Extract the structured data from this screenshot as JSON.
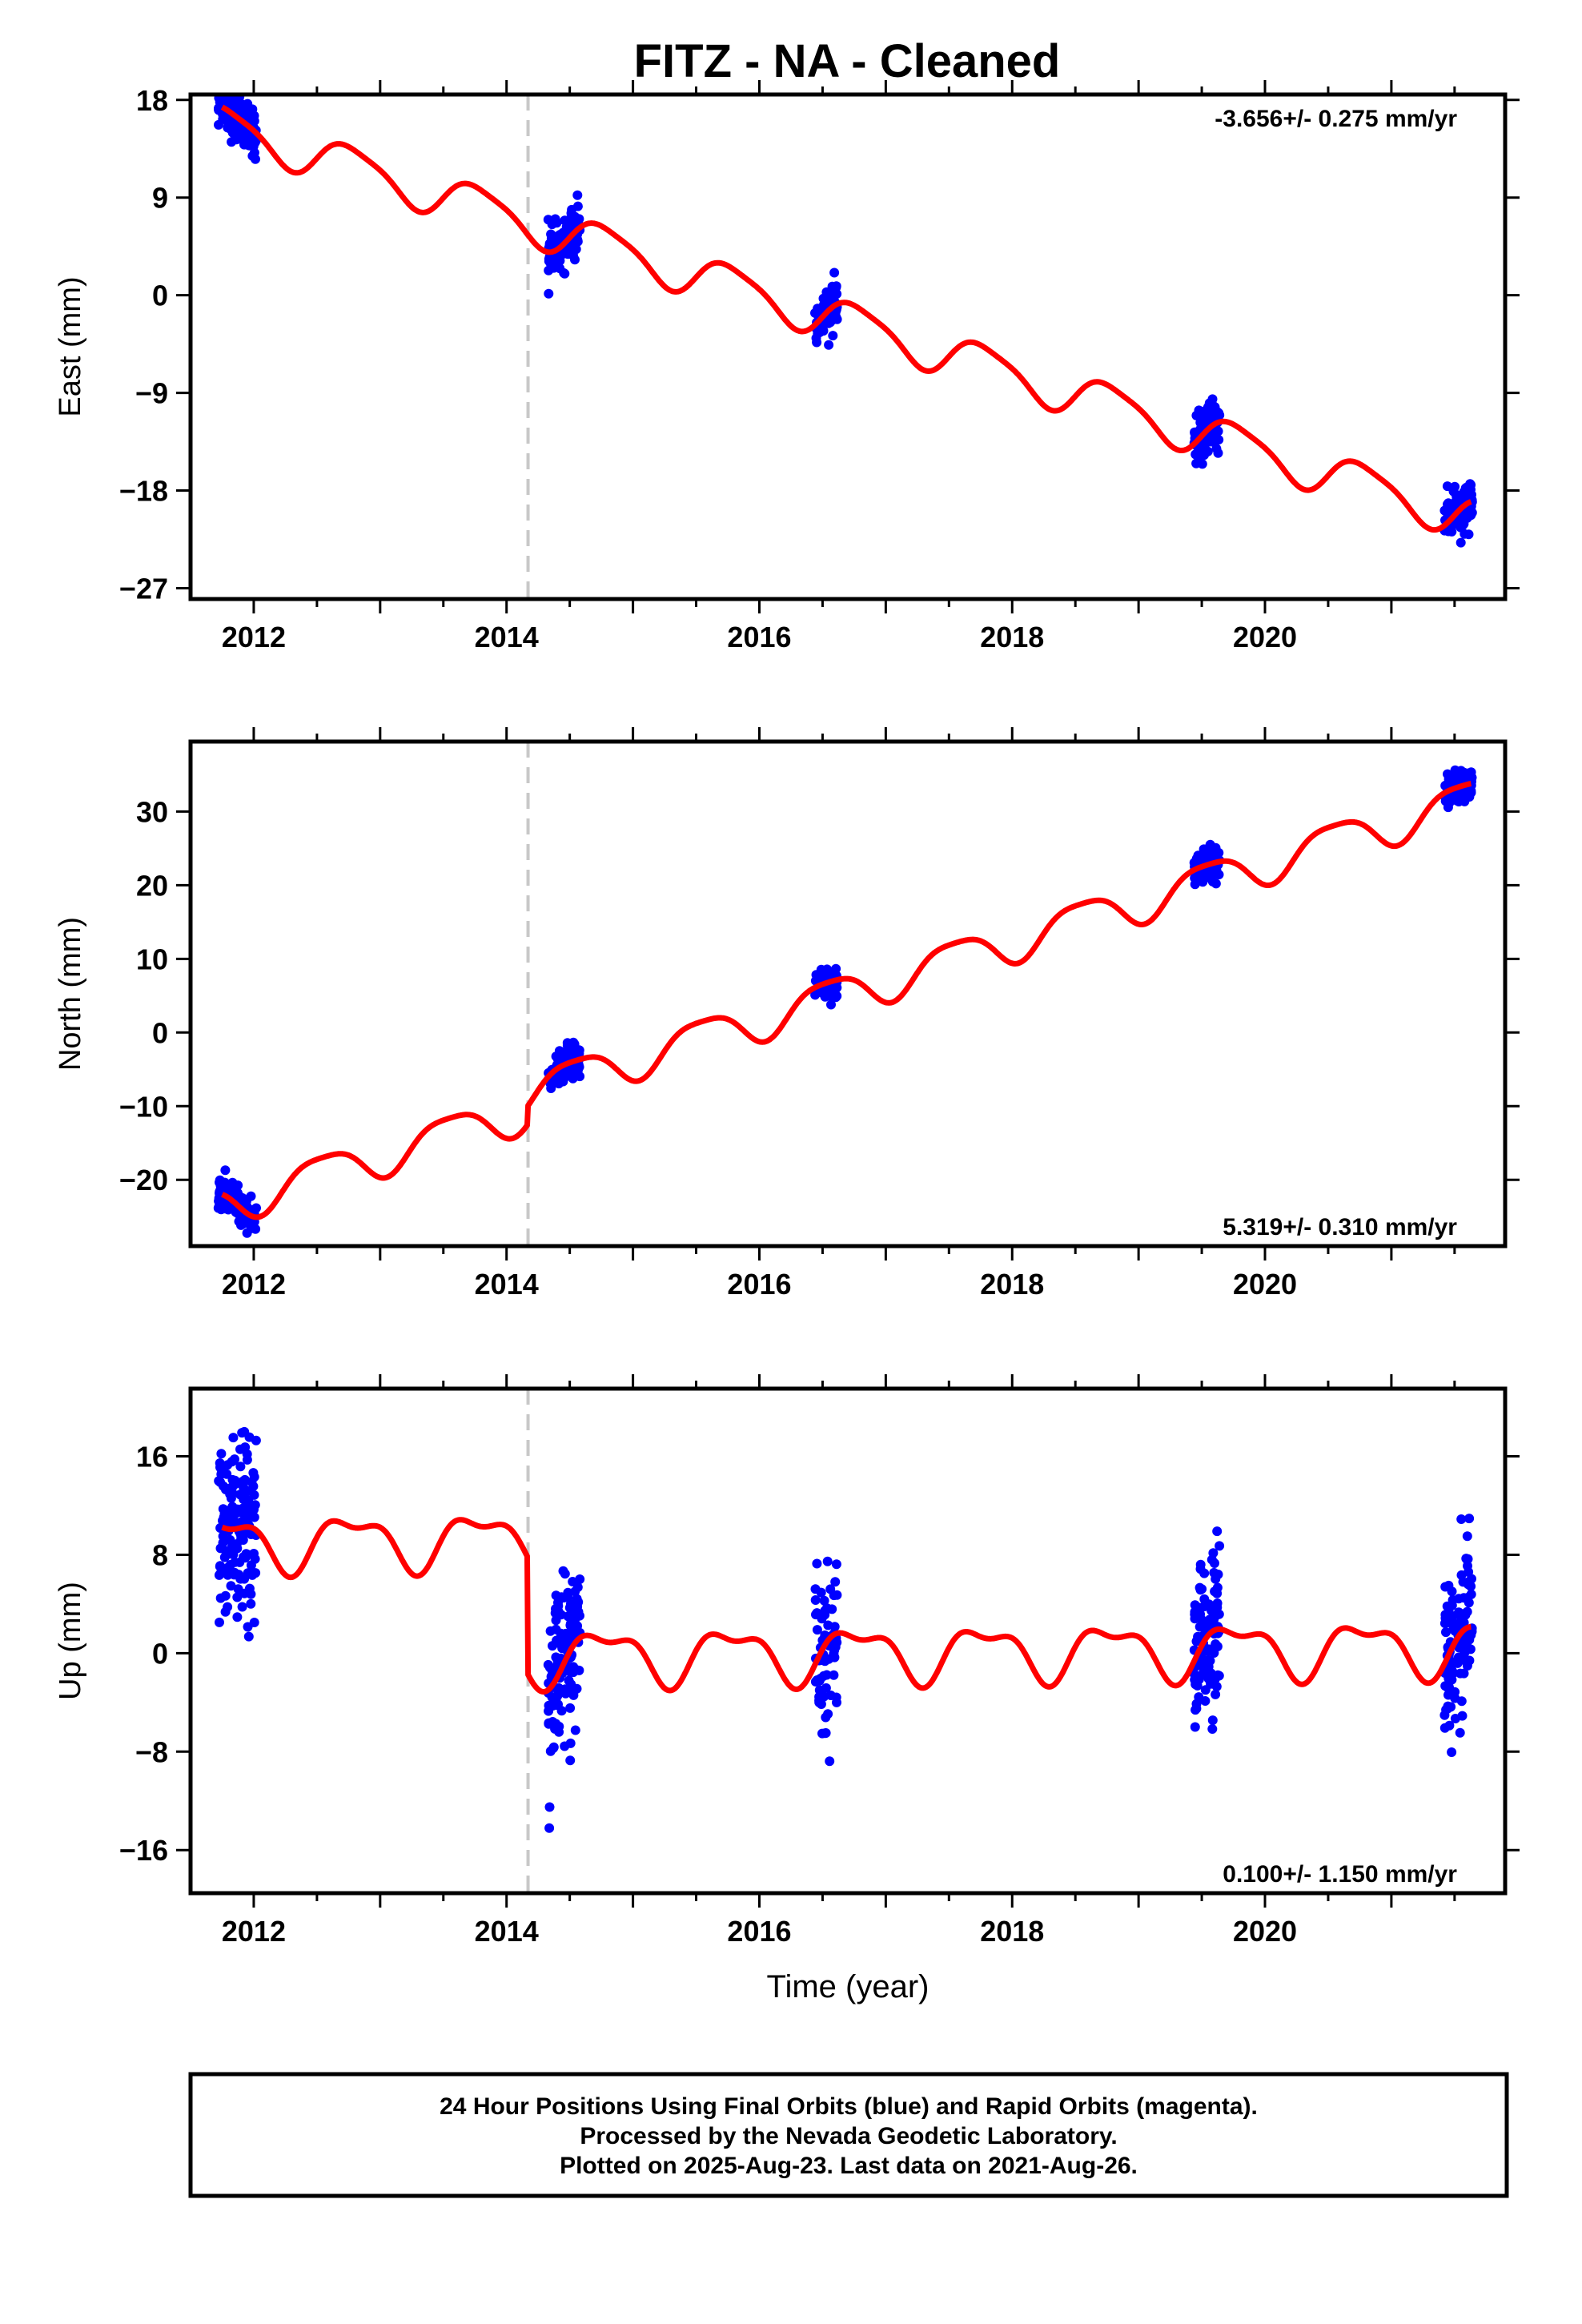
{
  "title": "FITZ  - NA - Cleaned",
  "chart_data": [
    {
      "type": "scatter",
      "component": "east",
      "ylabel": "East (mm)",
      "ylim": [
        -28,
        18.5
      ],
      "xlim": [
        2011.5,
        2021.9
      ],
      "yticks": [
        18,
        9,
        0,
        -9,
        -18,
        -27
      ],
      "ytick_labels": [
        "18",
        "9",
        "0",
        "−9",
        "−18",
        "−27"
      ],
      "xticks": [
        2012,
        2014,
        2016,
        2018,
        2020
      ],
      "xtick_labels": [
        "2012",
        "2014",
        "2016",
        "2018",
        "2020"
      ],
      "rate_label": "-3.656+/- 0.275 mm/yr",
      "rate_position": "top-right",
      "step_epoch": 2014.17,
      "step": 0,
      "model": {
        "intercept": 15.6,
        "t0": 2011.75,
        "rate": -3.656,
        "annual_amp": 1.9,
        "annual_phase_peak": 0.78,
        "semiannual_amp": 0.4,
        "semiannual_phase_peak": 0.1
      },
      "scatter_sigma": 1.1,
      "campaigns": [
        {
          "start": 2011.72,
          "end": 2012.02,
          "n": 160
        },
        {
          "start": 2014.33,
          "end": 2014.58,
          "n": 130
        },
        {
          "start": 2016.44,
          "end": 2016.62,
          "n": 70
        },
        {
          "start": 2019.44,
          "end": 2019.64,
          "n": 110
        },
        {
          "start": 2021.42,
          "end": 2021.64,
          "n": 110
        }
      ]
    },
    {
      "type": "scatter",
      "component": "north",
      "ylabel": "North (mm)",
      "ylim": [
        -29,
        39.5
      ],
      "xlim": [
        2011.5,
        2021.9
      ],
      "yticks": [
        30,
        20,
        10,
        0,
        -10,
        -20
      ],
      "ytick_labels": [
        "30",
        "20",
        "10",
        "0",
        "−10",
        "−20"
      ],
      "xticks": [
        2012,
        2014,
        2016,
        2018,
        2020
      ],
      "xtick_labels": [
        "2012",
        "2014",
        "2016",
        "2018",
        "2020"
      ],
      "rate_label": "5.319+/- 0.310 mm/yr",
      "rate_position": "bottom-right",
      "step_epoch": 2014.17,
      "step": 2.5,
      "model": {
        "intercept": -23.3,
        "t0": 2011.75,
        "rate": 5.319,
        "annual_amp": 2.7,
        "annual_phase_peak": 0.55,
        "semiannual_amp": 0.6,
        "semiannual_phase_peak": 0.3
      },
      "scatter_sigma": 1.1,
      "campaigns": [
        {
          "start": 2011.72,
          "end": 2012.02,
          "n": 160
        },
        {
          "start": 2014.33,
          "end": 2014.58,
          "n": 130
        },
        {
          "start": 2016.44,
          "end": 2016.62,
          "n": 70
        },
        {
          "start": 2019.44,
          "end": 2019.64,
          "n": 110
        },
        {
          "start": 2021.42,
          "end": 2021.64,
          "n": 110
        }
      ]
    },
    {
      "type": "scatter",
      "component": "up",
      "ylabel": "Up (mm)",
      "ylim": [
        -19.5,
        21.5
      ],
      "xlim": [
        2011.5,
        2021.9
      ],
      "yticks": [
        16,
        8,
        0,
        -8,
        -16
      ],
      "ytick_labels": [
        "16",
        "8",
        "0",
        "−8",
        "−16"
      ],
      "xticks": [
        2012,
        2014,
        2016,
        2018,
        2020
      ],
      "xtick_labels": [
        "2012",
        "2014",
        "2016",
        "2018",
        "2020"
      ],
      "xlabel": "Time (year)",
      "rate_label": "0.100+/- 1.150 mm/yr",
      "rate_position": "bottom-right",
      "step_epoch": 2014.17,
      "step": -9.5,
      "model": {
        "intercept": 9.0,
        "t0": 2011.75,
        "rate": 0.1,
        "annual_amp": 2.0,
        "annual_phase_peak": 0.78,
        "semiannual_amp": 0.9,
        "semiannual_phase_peak": 0.05
      },
      "scatter_sigma": 3.4,
      "campaigns": [
        {
          "start": 2011.72,
          "end": 2012.02,
          "n": 160
        },
        {
          "start": 2014.33,
          "end": 2014.58,
          "n": 130
        },
        {
          "start": 2016.44,
          "end": 2016.62,
          "n": 70
        },
        {
          "start": 2019.44,
          "end": 2019.64,
          "n": 110
        },
        {
          "start": 2021.42,
          "end": 2021.64,
          "n": 110
        }
      ]
    }
  ],
  "colors": {
    "points": "#0000ff",
    "model": "#ff0000",
    "step_line": "#c8c8c8",
    "frame": "#000000"
  },
  "footer": {
    "line1": "24 Hour Positions Using Final Orbits (blue) and Rapid Orbits (magenta).",
    "line2": "Processed by the Nevada Geodetic Laboratory.",
    "line3": "Plotted on 2025-Aug-23. Last data on 2021-Aug-26."
  }
}
